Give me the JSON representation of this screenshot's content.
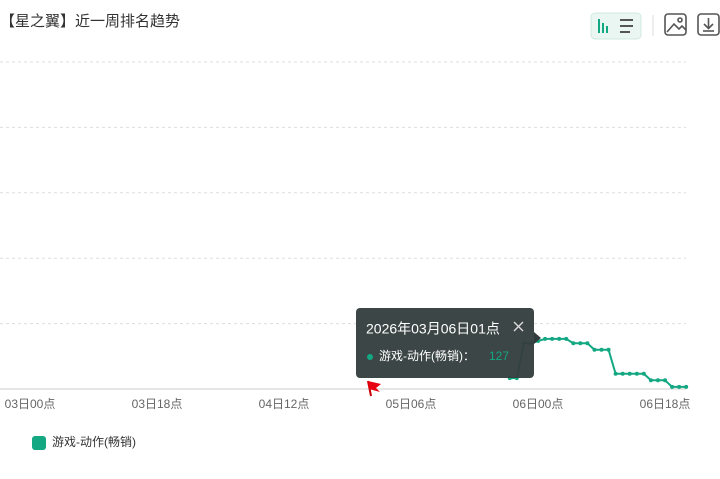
{
  "chart_data": {
    "type": "line",
    "title": "【星之翼】近一周排名趋势",
    "categories": [
      "03日00点",
      null,
      null,
      null,
      null,
      null,
      null,
      null,
      null,
      null,
      null,
      null,
      null,
      null,
      null,
      null,
      null,
      null,
      "03日18点",
      null,
      null,
      null,
      null,
      null,
      null,
      null,
      null,
      null,
      null,
      null,
      null,
      null,
      null,
      null,
      null,
      null,
      "04日12点",
      null,
      null,
      null,
      null,
      null,
      null,
      null,
      null,
      null,
      null,
      null,
      null,
      null,
      null,
      null,
      null,
      null,
      "05日06点",
      null,
      null,
      null,
      null,
      null,
      null,
      null,
      null,
      null,
      null,
      null,
      null,
      null,
      null,
      null,
      null,
      null,
      "06日00点",
      null,
      null,
      null,
      null,
      null,
      null,
      null,
      null,
      null,
      null,
      null,
      null,
      null,
      null,
      null,
      null,
      null,
      "06日18点",
      null,
      null,
      null
    ],
    "series": [
      {
        "name": "游戏-动作(畅销)",
        "color": "#13a882",
        "values": [
          null,
          null,
          null,
          null,
          null,
          null,
          null,
          null,
          null,
          null,
          null,
          null,
          null,
          null,
          null,
          null,
          null,
          null,
          null,
          null,
          null,
          null,
          null,
          null,
          null,
          null,
          null,
          null,
          null,
          null,
          null,
          null,
          null,
          null,
          null,
          null,
          null,
          null,
          null,
          null,
          null,
          null,
          null,
          null,
          null,
          null,
          null,
          null,
          null,
          null,
          null,
          null,
          null,
          null,
          null,
          null,
          null,
          null,
          null,
          null,
          null,
          null,
          null,
          null,
          null,
          null,
          null,
          null,
          145,
          145,
          129,
          129,
          128,
          127,
          127,
          127,
          127,
          129,
          129,
          129,
          132,
          132,
          132,
          143,
          143,
          143,
          143,
          143,
          146,
          146,
          146,
          149,
          149,
          149
        ]
      }
    ],
    "ylim": [
      0,
      150
    ],
    "yticks": [
      0,
      30,
      60,
      90,
      120,
      150
    ],
    "y_inverted": true,
    "grid": true,
    "tooltip": {
      "title": "2026年03月06日01点",
      "label": "游戏-动作(畅销)：",
      "index": 73
    }
  }
}
